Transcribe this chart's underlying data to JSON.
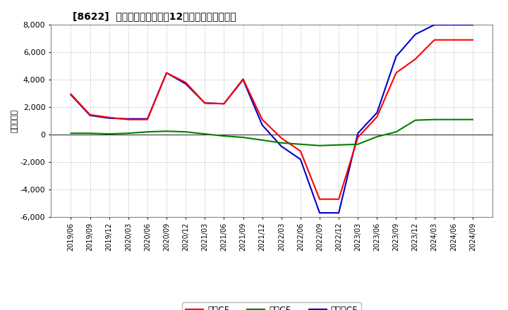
{
  "title": "[8622]  キャッシュフローの12か月移動合計の推移",
  "ylabel": "（百万円）",
  "background_color": "#ffffff",
  "plot_bg_color": "#ffffff",
  "grid_color": "#999999",
  "ylim": [
    -6000,
    8000
  ],
  "yticks": [
    -6000,
    -4000,
    -2000,
    0,
    2000,
    4000,
    6000,
    8000
  ],
  "x_labels": [
    "2019/06",
    "2019/09",
    "2019/12",
    "2020/03",
    "2020/06",
    "2020/09",
    "2020/12",
    "2021/03",
    "2021/06",
    "2021/09",
    "2021/12",
    "2022/03",
    "2022/06",
    "2022/09",
    "2022/12",
    "2023/03",
    "2023/06",
    "2023/09",
    "2023/12",
    "2024/03",
    "2024/06",
    "2024/09"
  ],
  "operating_cf": [
    2950,
    1450,
    1250,
    1100,
    1100,
    4500,
    3800,
    2300,
    2250,
    4050,
    1100,
    -250,
    -1200,
    -4700,
    -4700,
    -200,
    1300,
    4500,
    5500,
    6900,
    6900,
    6900
  ],
  "investing_cf": [
    100,
    100,
    50,
    100,
    200,
    250,
    200,
    50,
    -100,
    -200,
    -400,
    -600,
    -700,
    -800,
    -750,
    -700,
    -150,
    200,
    1050,
    1100,
    1100,
    1100
  ],
  "free_cf": [
    2900,
    1400,
    1200,
    1150,
    1150,
    4500,
    3700,
    2300,
    2250,
    4000,
    700,
    -850,
    -1800,
    -5700,
    -5700,
    100,
    1600,
    5700,
    7300,
    8000,
    8000,
    8000
  ],
  "operating_color": "#ff0000",
  "investing_color": "#008000",
  "free_color": "#0000cc",
  "line_width": 1.5,
  "legend_labels": [
    "営業CF",
    "投資CF",
    "フリーCF"
  ]
}
